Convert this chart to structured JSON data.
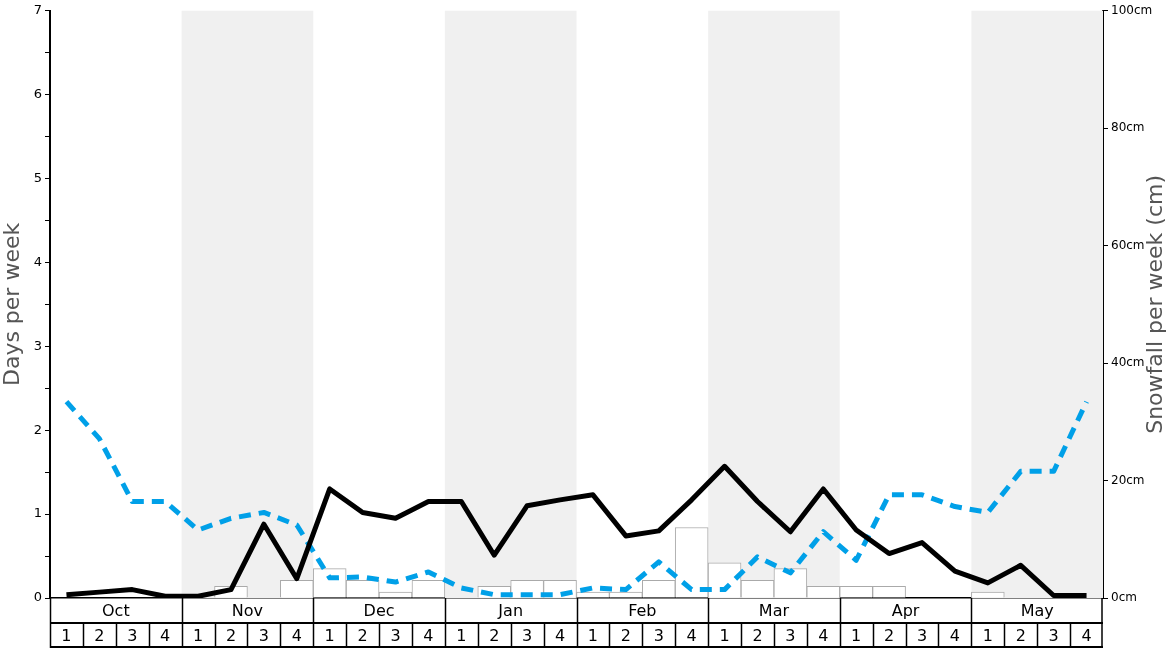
{
  "chart_data": {
    "type": "bar",
    "ylabel": "Days per week",
    "y2label": "Snowfall per week (cm)",
    "categories": [
      "1",
      "2",
      "3",
      "4",
      "1",
      "2",
      "3",
      "4",
      "1",
      "2",
      "3",
      "4",
      "1",
      "2",
      "3",
      "4",
      "1",
      "2",
      "3",
      "4",
      "1",
      "2",
      "3",
      "4",
      "1",
      "2",
      "3",
      "4",
      "1",
      "2",
      "3",
      "4"
    ],
    "annotations": [
      "Oct",
      "Nov",
      "Dec",
      "Jan",
      "Feb",
      "Mar",
      "Apr",
      "May"
    ],
    "ylim": [
      0,
      7
    ],
    "yticks": [
      0,
      {
        "value": 0.5,
        "label": null
      },
      1,
      {
        "value": 1.5,
        "label": null
      },
      2,
      {
        "value": 2.5,
        "label": null
      },
      3,
      {
        "value": 3.5,
        "label": null
      },
      4,
      {
        "value": 4.5,
        "label": null
      },
      5,
      {
        "value": 5.5,
        "label": null
      },
      6,
      {
        "value": 6.5,
        "label": null
      },
      7
    ],
    "y2lim": [
      0,
      100
    ],
    "y2ticks": [
      {
        "value": 0,
        "label": "0cm"
      },
      {
        "value": 20,
        "label": "20cm"
      },
      {
        "value": 40,
        "label": "40cm"
      },
      {
        "value": 60,
        "label": "60cm"
      },
      {
        "value": 80,
        "label": "80cm"
      },
      {
        "value": 100,
        "label": "100cm"
      }
    ],
    "grid": false,
    "legend": false,
    "marker": "none",
    "series": [
      {
        "axis": "y2",
        "color": "#ffffff",
        "values": [
          0,
          0,
          0,
          0,
          0,
          2,
          0,
          3,
          5,
          3,
          1,
          3,
          0,
          2,
          3,
          3,
          1,
          1,
          3,
          12,
          6,
          3,
          5,
          2,
          2,
          2,
          0,
          0,
          1,
          0,
          0,
          0
        ]
      },
      {
        "type": "line",
        "color": "#000000",
        "line_style": "solid",
        "values": [
          0.04,
          0.07,
          0.1,
          0.02,
          0.02,
          0.1,
          0.88,
          0.23,
          1.3,
          1.02,
          0.95,
          1.15,
          1.15,
          0.51,
          1.1,
          1.17,
          1.23,
          0.74,
          0.8,
          1.17,
          1.57,
          1.15,
          0.79,
          1.3,
          0.81,
          0.53,
          0.66,
          0.32,
          0.18,
          0.39,
          0.03,
          0.03
        ]
      },
      {
        "type": "line",
        "color": "#00a0e8",
        "line_style": "dashed",
        "values": [
          2.34,
          1.9,
          1.15,
          1.15,
          0.81,
          0.95,
          1.02,
          0.87,
          0.24,
          0.25,
          0.19,
          0.31,
          0.12,
          0.04,
          0.04,
          0.04,
          0.12,
          0.1,
          0.43,
          0.1,
          0.1,
          0.49,
          0.3,
          0.79,
          0.45,
          1.23,
          1.23,
          1.09,
          1.02,
          1.51,
          1.51,
          2.34
        ]
      }
    ]
  }
}
